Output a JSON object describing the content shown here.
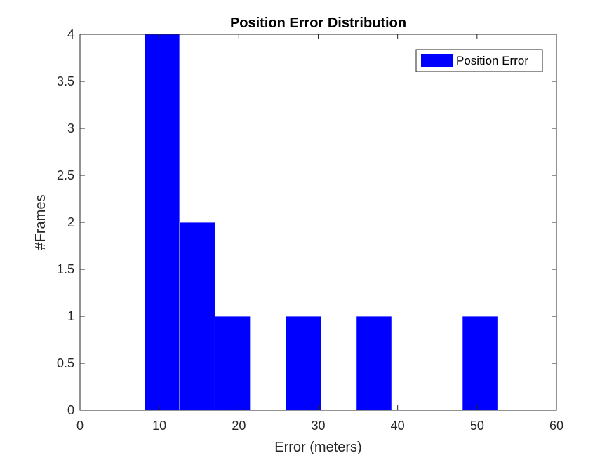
{
  "chart_data": {
    "type": "bar",
    "title": "Position Error Distribution",
    "xlabel": "Error (meters)",
    "ylabel": "#Frames",
    "xlim": [
      0,
      60
    ],
    "ylim": [
      0,
      4
    ],
    "xticks": [
      "0",
      "10",
      "20",
      "30",
      "40",
      "50",
      "60"
    ],
    "yticks": [
      "0",
      "0.5",
      "1",
      "1.5",
      "2",
      "2.5",
      "3",
      "3.5",
      "4"
    ],
    "xtick_values": [
      0,
      10,
      20,
      30,
      40,
      50,
      60
    ],
    "ytick_values": [
      0,
      0.5,
      1,
      1.5,
      2,
      2.5,
      3,
      3.5,
      4
    ],
    "grid": false,
    "legend_position": "top-right",
    "series": [
      {
        "name": "Position Error",
        "color": "#0000ff",
        "bins": [
          {
            "x0": 8.1,
            "x1": 12.55,
            "value": 4
          },
          {
            "x0": 12.55,
            "x1": 17.0,
            "value": 2
          },
          {
            "x0": 17.0,
            "x1": 21.45,
            "value": 1
          },
          {
            "x0": 25.9,
            "x1": 30.35,
            "value": 1
          },
          {
            "x0": 34.8,
            "x1": 39.25,
            "value": 1
          },
          {
            "x0": 48.15,
            "x1": 52.6,
            "value": 1
          }
        ]
      }
    ]
  }
}
